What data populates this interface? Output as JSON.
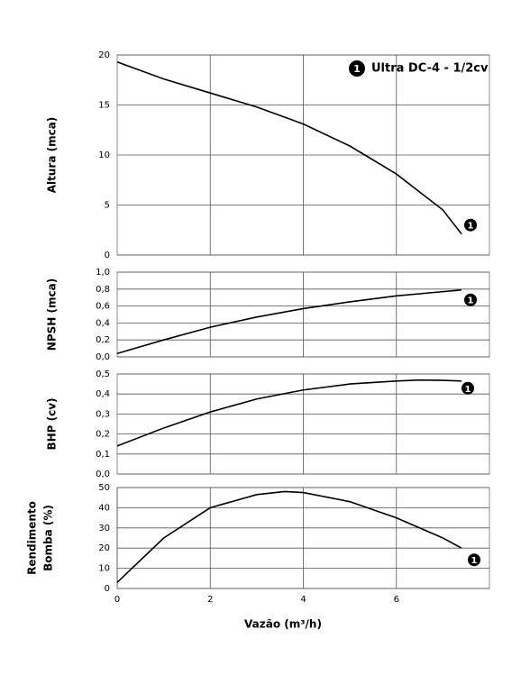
{
  "chart_data": [
    {
      "type": "line",
      "ylabel": "Altura (mca)",
      "x": [
        0,
        1,
        2,
        3,
        4,
        5,
        6,
        7,
        7.4
      ],
      "series": [
        {
          "name": "Ultra DC-4 - 1/2cv",
          "marker": "1",
          "color": "#000000",
          "values": [
            19.3,
            17.6,
            16.2,
            14.8,
            13.1,
            10.9,
            8.1,
            4.5,
            2.1
          ]
        }
      ],
      "xlim": [
        0,
        8
      ],
      "xticks": [
        2,
        4,
        6
      ],
      "ylim": [
        0,
        20
      ],
      "yticks": [
        0,
        5,
        10,
        15,
        20
      ],
      "grid": true
    },
    {
      "type": "line",
      "ylabel": "NPSH (mca)",
      "x": [
        0,
        1,
        2,
        3,
        4,
        5,
        6,
        7,
        7.4
      ],
      "series": [
        {
          "marker": "1",
          "color": "#000000",
          "values": [
            0.04,
            0.2,
            0.35,
            0.47,
            0.57,
            0.65,
            0.72,
            0.77,
            0.79
          ]
        }
      ],
      "xlim": [
        0,
        8
      ],
      "xticks": [
        2,
        4,
        6
      ],
      "ylim": [
        0,
        1
      ],
      "yticks": [
        {
          "value": 0,
          "label": "0,0"
        },
        {
          "value": 0.2,
          "label": "0,2"
        },
        {
          "value": 0.4,
          "label": "0,4"
        },
        {
          "value": 0.6,
          "label": "0,6"
        },
        {
          "value": 0.8,
          "label": "0,8"
        },
        {
          "value": 1,
          "label": "1,0"
        }
      ],
      "grid": true
    },
    {
      "type": "line",
      "ylabel": "BHP (cv)",
      "x": [
        0,
        1,
        2,
        3,
        4,
        5,
        6,
        6.5,
        7,
        7.4
      ],
      "series": [
        {
          "marker": "1",
          "color": "#000000",
          "values": [
            0.14,
            0.23,
            0.31,
            0.375,
            0.42,
            0.45,
            0.465,
            0.47,
            0.468,
            0.465
          ]
        }
      ],
      "xlim": [
        0,
        8
      ],
      "xticks": [
        2,
        4,
        6
      ],
      "ylim": [
        0,
        0.5
      ],
      "yticks": [
        {
          "value": 0,
          "label": "0,0"
        },
        {
          "value": 0.1,
          "label": "0,1"
        },
        {
          "value": 0.2,
          "label": "0,2"
        },
        {
          "value": 0.3,
          "label": "0,3"
        },
        {
          "value": 0.4,
          "label": "0,4"
        },
        {
          "value": 0.5,
          "label": "0,5"
        }
      ],
      "grid": true
    },
    {
      "type": "line",
      "ylabel": [
        "Rendimento",
        "Bomba (%)"
      ],
      "xlabel": "Vazão (m³/h)",
      "x": [
        0,
        1,
        2,
        3,
        3.6,
        4,
        5,
        6,
        7,
        7.4
      ],
      "series": [
        {
          "marker": "1",
          "color": "#000000",
          "values": [
            3,
            25,
            40,
            46.5,
            48,
            47.5,
            43,
            35,
            25,
            20
          ]
        }
      ],
      "xlim": [
        0,
        8
      ],
      "xticks": [
        0,
        2,
        4,
        6
      ],
      "ylim": [
        0,
        50
      ],
      "yticks": [
        0,
        10,
        20,
        30,
        40,
        50
      ],
      "grid": true,
      "show_xtick_labels": true
    }
  ]
}
